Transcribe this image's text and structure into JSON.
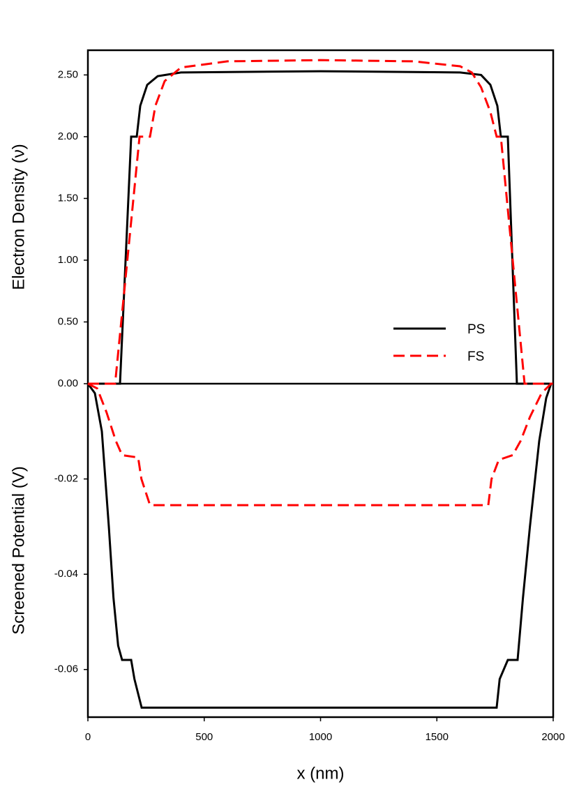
{
  "chart_data": [
    {
      "type": "line",
      "ylabel": "Electron Density (ν)",
      "xlim": [
        0,
        2000
      ],
      "ylim": [
        0,
        2.7
      ],
      "yticks": [
        {
          "value": 0,
          "label": "0.00"
        },
        {
          "value": 0.5,
          "label": "0.50"
        },
        {
          "value": 1,
          "label": "1.00"
        },
        {
          "value": 1.5,
          "label": "1.50"
        },
        {
          "value": 2,
          "label": "2.00"
        },
        {
          "value": 2.5,
          "label": "2.50"
        }
      ],
      "legend": "center-right",
      "series": [
        {
          "name": "PS",
          "color": "#000000",
          "linestyle": "solid",
          "x": [
            0,
            138,
            186,
            210,
            225,
            255,
            300,
            400,
            1000,
            1600,
            1690,
            1730,
            1760,
            1775,
            1805,
            1844,
            2000
          ],
          "values": [
            0,
            0,
            2.0,
            2.0,
            2.25,
            2.42,
            2.49,
            2.52,
            2.53,
            2.52,
            2.5,
            2.42,
            2.25,
            2.0,
            2.0,
            0,
            0
          ]
        },
        {
          "name": "FS",
          "color": "#ff0000",
          "linestyle": "dashed",
          "x": [
            0,
            117,
            222,
            267,
            290,
            330,
            400,
            600,
            1000,
            1400,
            1600,
            1650,
            1690,
            1730,
            1757,
            1775,
            1877,
            2000
          ],
          "values": [
            0,
            0,
            2.0,
            2.0,
            2.25,
            2.45,
            2.56,
            2.61,
            2.62,
            2.61,
            2.57,
            2.52,
            2.4,
            2.2,
            2.0,
            2.0,
            0,
            0
          ]
        }
      ]
    },
    {
      "type": "line",
      "xlabel": "x (nm)",
      "ylabel": "Screened Potential (V)",
      "xlim": [
        0,
        2000
      ],
      "ylim": [
        -0.07,
        0
      ],
      "xticks": [
        0,
        500,
        1000,
        1500,
        2000
      ],
      "yticks": [
        -0.06,
        -0.04,
        -0.02
      ],
      "series": [
        {
          "color": "#000000",
          "linestyle": "solid",
          "x": [
            0,
            30,
            60,
            90,
            110,
            130,
            147,
            186,
            200,
            231,
            1000,
            1757,
            1770,
            1805,
            1847,
            1870,
            1900,
            1940,
            1970,
            1991,
            2000
          ],
          "values": [
            0,
            -0.002,
            -0.01,
            -0.03,
            -0.045,
            -0.055,
            -0.058,
            -0.058,
            -0.062,
            -0.068,
            -0.068,
            -0.068,
            -0.062,
            -0.058,
            -0.058,
            -0.045,
            -0.03,
            -0.012,
            -0.003,
            0,
            0
          ]
        },
        {
          "color": "#ff0000",
          "linestyle": "dashed",
          "x": [
            0,
            40,
            80,
            120,
            147,
            216,
            230,
            267,
            1000,
            1721,
            1735,
            1766,
            1826,
            1860,
            1900,
            1950,
            1991,
            2000
          ],
          "values": [
            0,
            -0.001,
            -0.006,
            -0.012,
            -0.015,
            -0.0155,
            -0.02,
            -0.0255,
            -0.0255,
            -0.0255,
            -0.02,
            -0.016,
            -0.015,
            -0.012,
            -0.007,
            -0.002,
            0,
            0
          ]
        }
      ]
    }
  ]
}
